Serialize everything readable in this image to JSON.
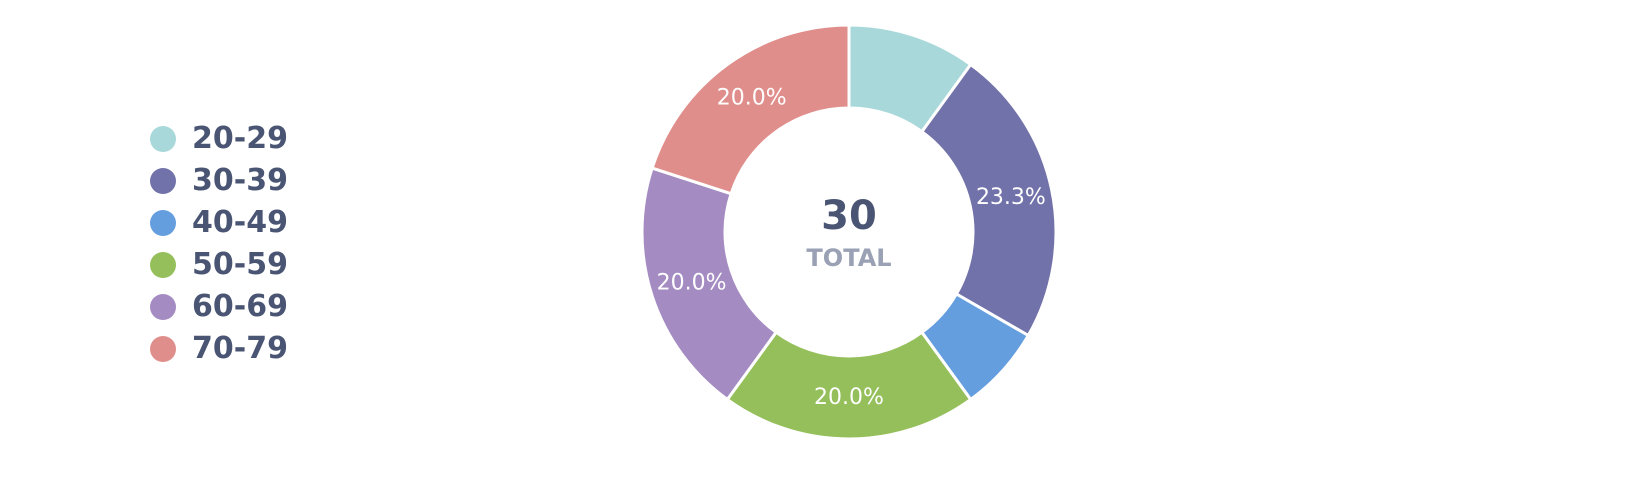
{
  "chart_data": {
    "type": "pie",
    "donut": true,
    "legend_position": "left",
    "center": {
      "value": "30",
      "caption": "TOTAL"
    },
    "categories": [
      "20-29",
      "30-39",
      "40-49",
      "50-59",
      "60-69",
      "70-79"
    ],
    "values": [
      3,
      7,
      2,
      6,
      6,
      6
    ],
    "percent_labels": [
      "",
      "23.3%",
      "",
      "20.0%",
      "20.0%",
      "20.0%"
    ],
    "colors": [
      "#a8d8da",
      "#7272aa",
      "#659ede",
      "#95bf5b",
      "#a48bc2",
      "#e08e8b"
    ]
  }
}
